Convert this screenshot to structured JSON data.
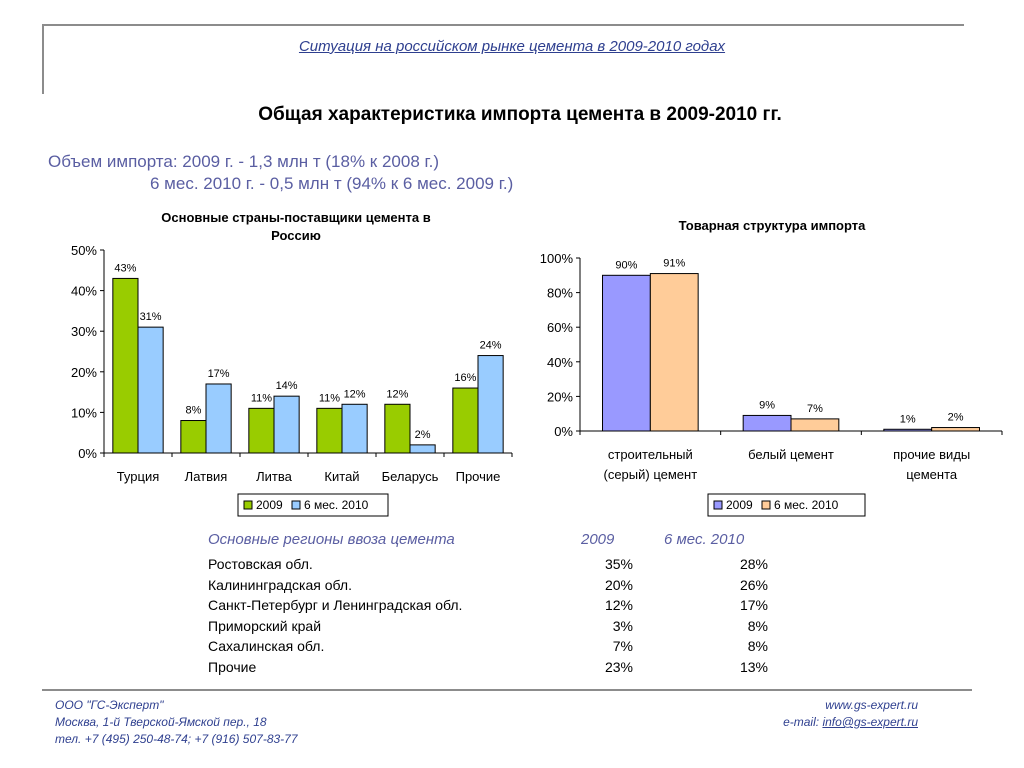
{
  "header": {
    "subtitle": "Ситуация на российском рынке цемента в 2009-2010 годах",
    "title": "Общая характеристика импорта цемента в 2009-2010 гг.",
    "volume_line1": "Объем импорта: 2009 г. - 1,3 млн т (18% к 2008 г.)",
    "volume_line2": "6 мес. 2010 г. - 0,5 млн т (94% к 6 мес. 2009 г.)"
  },
  "chart_data": [
    {
      "type": "bar",
      "title": "Основные страны-поставщики цемента в Россию",
      "title_lines": [
        "Основные страны-поставщики цемента в",
        "Россию"
      ],
      "categories": [
        "Турция",
        "Латвия",
        "Литва",
        "Китай",
        "Беларусь",
        "Прочие"
      ],
      "series": [
        {
          "name": "2009",
          "values": [
            43,
            8,
            11,
            11,
            12,
            16
          ],
          "labels": [
            "43%",
            "8%",
            "11%",
            "11%",
            "12%",
            "16%"
          ],
          "color": "#99cc00"
        },
        {
          "name": "6 мес. 2010",
          "values": [
            31,
            17,
            14,
            12,
            2,
            24
          ],
          "labels": [
            "31%",
            "17%",
            "14%",
            "12%",
            "2%",
            "24%"
          ],
          "color": "#99ccff"
        }
      ],
      "ylim": [
        0,
        50
      ],
      "yticks": [
        "0%",
        "10%",
        "20%",
        "30%",
        "40%",
        "50%"
      ],
      "grid": false,
      "legend": "bottom"
    },
    {
      "type": "bar",
      "title": "Товарная структура импорта",
      "categories": [
        "строительный (серый) цемент",
        "белый цемент",
        "прочие виды цемента"
      ],
      "category_lines": [
        [
          "строительный",
          "(серый) цемент"
        ],
        [
          "белый цемент"
        ],
        [
          "прочие виды",
          "цемента"
        ]
      ],
      "series": [
        {
          "name": "2009",
          "values": [
            90,
            9,
            1
          ],
          "labels": [
            "90%",
            "9%",
            "1%"
          ],
          "color": "#9999ff"
        },
        {
          "name": "6 мес. 2010",
          "values": [
            91,
            7,
            2
          ],
          "labels": [
            "91%",
            "7%",
            "2%"
          ],
          "color": "#ffcc99"
        }
      ],
      "ylim": [
        0,
        100
      ],
      "yticks": [
        "0%",
        "20%",
        "40%",
        "60%",
        "80%",
        "100%"
      ],
      "grid": false,
      "legend": "bottom"
    }
  ],
  "regions": {
    "header_name": "Основные регионы ввоза цемента",
    "header_2009": "2009",
    "header_2010": "6 мес. 2010",
    "rows": [
      {
        "name": "Ростовская обл.",
        "v2009": "35%",
        "v2010": "28%"
      },
      {
        "name": "Калининградская обл.",
        "v2009": "20%",
        "v2010": "26%"
      },
      {
        "name": "Санкт-Петербург и Ленинградская обл.",
        "v2009": "12%",
        "v2010": "17%"
      },
      {
        "name": "Приморский край",
        "v2009": "3%",
        "v2010": "8%"
      },
      {
        "name": "Сахалинская обл.",
        "v2009": "7%",
        "v2010": "8%"
      },
      {
        "name": "Прочие",
        "v2009": "23%",
        "v2010": "13%"
      }
    ]
  },
  "footer": {
    "company": "ООО \"ГС-Эксперт\"",
    "address": "Москва, 1-й Тверской-Ямской пер., 18",
    "phone": "тел. +7 (495) 250-48-74; +7 (916) 507-83-77",
    "website": "www.gs-expert.ru",
    "email_label": "e-mail: ",
    "email": "info@gs-expert.ru"
  }
}
